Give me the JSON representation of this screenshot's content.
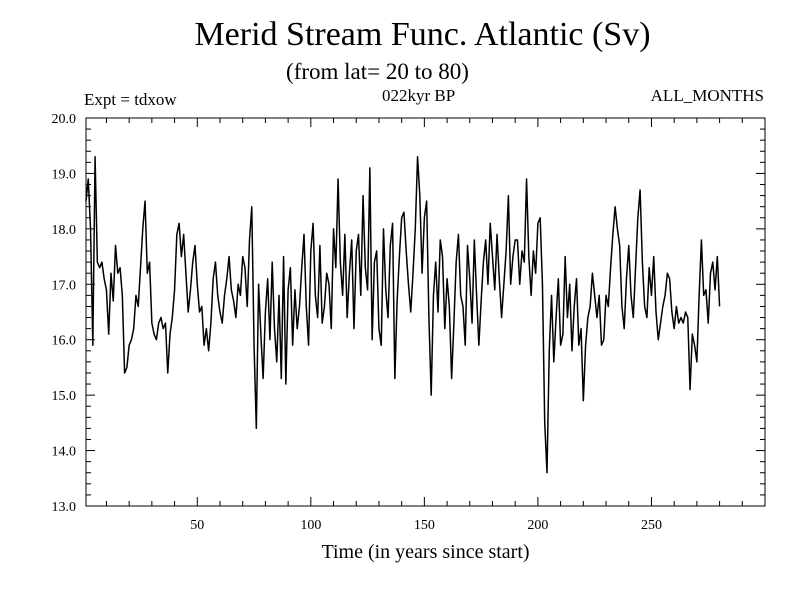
{
  "header": {
    "title": "Merid Stream Func. Atlantic (Sv)",
    "subtitle": "(from lat= 20 to 80)",
    "experiment": "Expt = tdxow",
    "period": "022kyr BP",
    "months": "ALL_MONTHS"
  },
  "chart_data": {
    "type": "line",
    "title": "Merid Stream Func. Atlantic (Sv)",
    "xlabel": "Time (in years since start)",
    "ylabel": "",
    "xlim": [
      1,
      300
    ],
    "ylim": [
      13.0,
      20.0
    ],
    "x_ticks": [
      50,
      100,
      150,
      200,
      250
    ],
    "y_ticks": [
      "13.0",
      "14.0",
      "15.0",
      "16.0",
      "17.0",
      "18.0",
      "19.0",
      "20.0"
    ],
    "grid": false,
    "series": [
      {
        "name": "",
        "color": "#000000",
        "x_start": 1,
        "x_step": 1,
        "values": [
          18.5,
          18.9,
          18.0,
          15.9,
          19.3,
          17.4,
          17.3,
          17.4,
          17.1,
          16.9,
          16.1,
          17.2,
          16.7,
          17.7,
          17.2,
          17.3,
          16.8,
          15.4,
          15.5,
          15.9,
          16.0,
          16.2,
          16.8,
          16.6,
          17.3,
          18.0,
          18.5,
          17.2,
          17.4,
          16.3,
          16.1,
          16.0,
          16.3,
          16.4,
          16.2,
          16.3,
          15.4,
          16.1,
          16.4,
          16.9,
          17.9,
          18.1,
          17.5,
          17.9,
          17.2,
          16.5,
          16.9,
          17.4,
          17.7,
          17.0,
          16.5,
          16.6,
          15.9,
          16.2,
          15.8,
          16.3,
          17.1,
          17.4,
          16.8,
          16.5,
          16.3,
          16.8,
          17.1,
          17.5,
          16.9,
          16.7,
          16.4,
          17.0,
          16.8,
          17.5,
          17.3,
          16.6,
          17.8,
          18.4,
          15.9,
          14.4,
          17.0,
          16.1,
          15.3,
          16.5,
          17.1,
          16.0,
          17.4,
          16.2,
          15.6,
          16.8,
          15.3,
          17.5,
          15.2,
          16.9,
          17.3,
          15.9,
          16.9,
          16.2,
          16.6,
          17.3,
          17.9,
          16.6,
          15.9,
          17.6,
          18.1,
          16.8,
          16.4,
          17.7,
          16.3,
          16.6,
          17.2,
          17.0,
          16.2,
          18.0,
          17.3,
          18.9,
          17.4,
          16.8,
          17.9,
          16.4,
          17.2,
          17.8,
          16.2,
          17.6,
          17.9,
          16.8,
          18.6,
          17.3,
          16.9,
          19.1,
          16.0,
          17.4,
          17.6,
          16.2,
          15.9,
          18.0,
          16.9,
          16.4,
          17.7,
          18.1,
          15.3,
          16.7,
          17.5,
          18.2,
          18.3,
          17.6,
          17.0,
          16.5,
          17.2,
          18.0,
          19.3,
          18.6,
          17.2,
          18.2,
          18.5,
          16.4,
          15.0,
          16.8,
          17.4,
          16.5,
          17.8,
          17.5,
          16.2,
          17.1,
          16.6,
          15.3,
          16.3,
          17.4,
          17.9,
          16.8,
          16.6,
          15.9,
          17.7,
          17.1,
          16.3,
          17.8,
          16.8,
          15.9,
          16.7,
          17.4,
          17.8,
          17.0,
          18.1,
          17.5,
          16.9,
          17.9,
          17.1,
          16.4,
          17.0,
          17.6,
          18.6,
          17.0,
          17.5,
          17.8,
          17.8,
          17.0,
          17.6,
          17.4,
          18.9,
          17.5,
          16.8,
          17.6,
          17.2,
          18.1,
          18.2,
          17.0,
          14.5,
          13.6,
          15.8,
          16.8,
          15.6,
          16.4,
          17.1,
          15.9,
          16.1,
          17.5,
          16.4,
          17.0,
          15.8,
          16.6,
          17.1,
          15.9,
          16.2,
          14.9,
          15.9,
          16.4,
          16.6,
          17.2,
          16.8,
          16.4,
          16.8,
          15.9,
          16.0,
          16.8,
          16.6,
          17.3,
          17.9,
          18.4,
          18.0,
          17.7,
          16.6,
          16.2,
          17.1,
          17.7,
          16.8,
          16.4,
          17.3,
          18.2,
          18.7,
          17.4,
          16.6,
          16.4,
          17.3,
          16.8,
          17.5,
          16.5,
          16.0,
          16.3,
          16.6,
          16.8,
          17.2,
          17.1,
          16.5,
          16.2,
          16.6,
          16.3,
          16.4,
          16.3,
          16.5,
          16.4,
          15.1,
          16.1,
          15.9,
          15.6,
          16.8,
          17.8,
          16.8,
          16.9,
          16.3,
          17.2,
          17.4,
          16.9,
          17.5,
          16.6
        ]
      }
    ]
  }
}
